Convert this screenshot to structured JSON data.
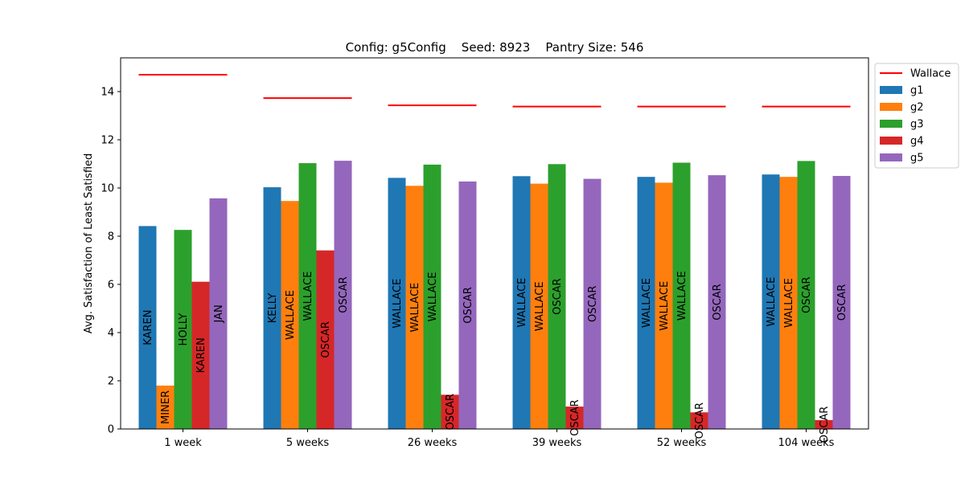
{
  "chart_data": {
    "type": "bar",
    "title": "Config: g5Config    Seed: 8923    Pantry Size: 546",
    "xlabel": "",
    "ylabel": "Avg. Satisfaction of Least Satisfied",
    "ylim": [
      0,
      15.4
    ],
    "yticks": [
      0,
      2,
      4,
      6,
      8,
      10,
      12,
      14
    ],
    "categories": [
      "1 week",
      "5 weeks",
      "26 weeks",
      "39 weeks",
      "52 weeks",
      "104 weeks"
    ],
    "legend_position": "outside-top-right",
    "grid": false,
    "series": [
      {
        "name": "g1",
        "color": "#1f77b4",
        "values": [
          8.42,
          10.03,
          10.42,
          10.49,
          10.46,
          10.56
        ],
        "labels": [
          "KAREN",
          "KELLY",
          "WALLACE",
          "WALLACE",
          "WALLACE",
          "WALLACE"
        ]
      },
      {
        "name": "g2",
        "color": "#ff7f0e",
        "values": [
          1.8,
          9.46,
          10.09,
          10.18,
          10.22,
          10.46
        ],
        "labels": [
          "MINER",
          "WALLACE",
          "WALLACE",
          "WALLACE",
          "WALLACE",
          "WALLACE"
        ]
      },
      {
        "name": "g3",
        "color": "#2ca02c",
        "values": [
          8.26,
          11.03,
          10.97,
          10.99,
          11.05,
          11.12
        ],
        "labels": [
          "HOLLY",
          "WALLACE",
          "WALLACE",
          "OSCAR",
          "WALLACE",
          "OSCAR"
        ]
      },
      {
        "name": "g4",
        "color": "#d62728",
        "values": [
          6.11,
          7.41,
          1.42,
          0.93,
          0.69,
          0.37
        ],
        "labels": [
          "KAREN",
          "OSCAR",
          "OSCAR",
          "OSCAR",
          "OSCAR",
          "OSCAR"
        ]
      },
      {
        "name": "g5",
        "color": "#9467bd",
        "values": [
          9.57,
          11.13,
          10.27,
          10.38,
          10.53,
          10.5
        ],
        "labels": [
          "JAN",
          "OSCAR",
          "OSCAR",
          "OSCAR",
          "OSCAR",
          "OSCAR"
        ]
      }
    ],
    "reference_line": {
      "name": "Wallace",
      "color": "#ff0000",
      "values": [
        14.7,
        13.73,
        13.43,
        13.38,
        13.38,
        13.38
      ]
    }
  }
}
